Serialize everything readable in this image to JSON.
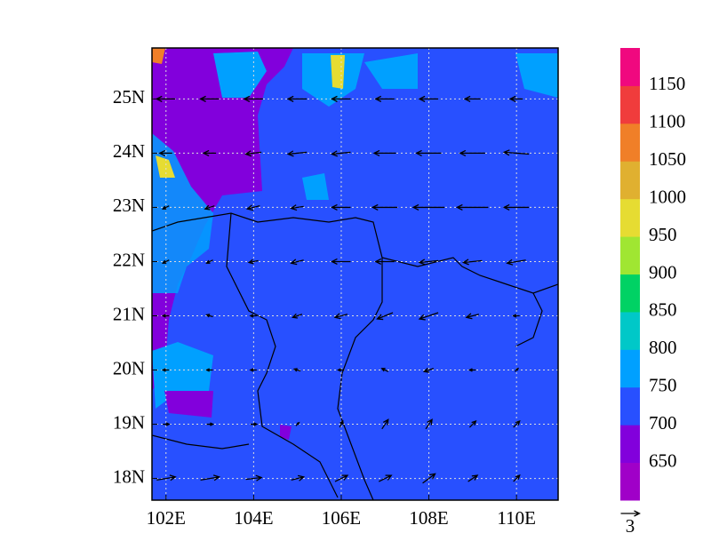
{
  "chart_data": {
    "type": "vector-map",
    "xlim": [
      101.68,
      110.95
    ],
    "ylim": [
      17.6,
      25.94
    ],
    "xticks": [
      {
        "value": 102,
        "label": "102E"
      },
      {
        "value": 104,
        "label": "104E"
      },
      {
        "value": 106,
        "label": "106E"
      },
      {
        "value": 108,
        "label": "108E"
      },
      {
        "value": 110,
        "label": "110E"
      }
    ],
    "yticks": [
      {
        "value": 18,
        "label": "18N"
      },
      {
        "value": 19,
        "label": "19N"
      },
      {
        "value": 20,
        "label": "20N"
      },
      {
        "value": 21,
        "label": "21N"
      },
      {
        "value": 22,
        "label": "22N"
      },
      {
        "value": 23,
        "label": "23N"
      },
      {
        "value": 24,
        "label": "24N"
      },
      {
        "value": 25,
        "label": "25N"
      }
    ],
    "grid": true,
    "colorbar": {
      "levels": [
        650,
        700,
        750,
        800,
        850,
        900,
        950,
        1000,
        1050,
        1100,
        1150
      ],
      "colors": [
        "#a000c8",
        "#8200dc",
        "#2850ff",
        "#00a0ff",
        "#00c8c8",
        "#00d264",
        "#a0e632",
        "#e6dc32",
        "#e0b030",
        "#f07f28",
        "#f03c3c",
        "#f0087f"
      ]
    },
    "wind": {
      "lon": [
        102,
        103,
        104,
        105,
        106,
        107,
        108,
        109,
        110
      ],
      "lat": [
        25,
        24,
        23,
        22,
        21,
        20,
        19,
        18
      ],
      "u": [
        [
          -3,
          -3,
          -3,
          -3,
          -3,
          -3,
          -3,
          -2.5,
          -2
        ],
        [
          -2,
          -2,
          -2.5,
          -3,
          -3,
          -3.5,
          -4,
          -4,
          -4
        ],
        [
          -1,
          -1.5,
          -2,
          -2,
          -3,
          -4,
          -5,
          -5,
          -4
        ],
        [
          -1,
          -1,
          -1.5,
          -2,
          -3,
          -3,
          -3,
          -3,
          -3
        ],
        [
          -1,
          -1,
          -1,
          -1.5,
          -2,
          -2.5,
          -3,
          -2,
          -1
        ],
        [
          -1,
          -1,
          -1,
          -1,
          -1,
          -1,
          -1.5,
          -1,
          0.5
        ],
        [
          1,
          1,
          1,
          0.5,
          0.5,
          1,
          1,
          1,
          1
        ],
        [
          3,
          3,
          2.5,
          2,
          2,
          2,
          2,
          1.5,
          1
        ]
      ],
      "v": [
        [
          0,
          0,
          0,
          0,
          0,
          0,
          0,
          0,
          0
        ],
        [
          0,
          0,
          -0.3,
          -0.3,
          -0.3,
          0,
          0,
          0,
          0.3
        ],
        [
          -0.5,
          -0.5,
          -0.5,
          -0.3,
          0,
          0,
          0,
          0,
          0
        ],
        [
          -0.5,
          -0.5,
          -0.3,
          -0.5,
          0,
          0,
          -0.3,
          -0.3,
          -0.5
        ],
        [
          0,
          0.3,
          0,
          -0.5,
          -0.5,
          -1,
          -1,
          -0.5,
          0
        ],
        [
          0,
          0,
          0,
          0.3,
          0,
          0.5,
          -0.5,
          0,
          0.5
        ],
        [
          0,
          0,
          0,
          0.5,
          1,
          1.5,
          1.5,
          1,
          1
        ],
        [
          0.5,
          0.5,
          0.3,
          0.5,
          1,
          1,
          1.5,
          1,
          1
        ]
      ]
    },
    "ref_vector": 3
  }
}
